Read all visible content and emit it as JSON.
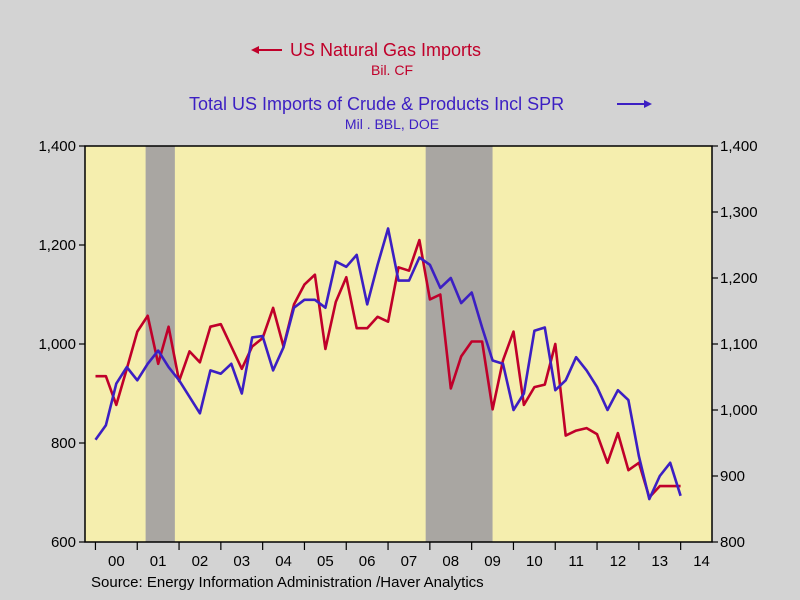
{
  "chart_data": {
    "type": "line",
    "title": "US Natural Gas Imports",
    "title_units": "Bil. CF",
    "subtitle": "Total US Imports of Crude & Products Incl SPR",
    "subtitle_units": "Mil . BBL, DOE",
    "source": "Source:  Energy Information Administration /Haver Analytics",
    "x_axis": {
      "range": [
        1999.75,
        2014.75
      ],
      "tick_labels": [
        "00",
        "01",
        "02",
        "03",
        "04",
        "05",
        "06",
        "07",
        "08",
        "09",
        "10",
        "11",
        "12",
        "13",
        "14"
      ],
      "tick_label_years": [
        2000.5,
        2001.5,
        2002.5,
        2003.5,
        2004.5,
        2005.5,
        2006.5,
        2007.5,
        2008.5,
        2009.5,
        2010.5,
        2011.5,
        2012.5,
        2013.5,
        2014.5
      ]
    },
    "y_left": {
      "range": [
        600,
        1400
      ],
      "ticks": [
        600,
        800,
        1000,
        1200,
        1400
      ],
      "tick_labels": [
        "600",
        "800",
        "1,000",
        "1,200",
        "1,400"
      ]
    },
    "y_right": {
      "range": [
        800,
        1400
      ],
      "ticks": [
        800,
        900,
        1000,
        1100,
        1200,
        1300,
        1400
      ],
      "tick_labels": [
        "800",
        "900",
        "1,000",
        "1,100",
        "1,200",
        "1,300",
        "1,400"
      ]
    },
    "recessions": [
      {
        "start": 2001.2,
        "end": 2001.9
      },
      {
        "start": 2007.9,
        "end": 2009.5
      }
    ],
    "colors": {
      "plot_bg": "#f5eeae",
      "recession": "#a9a6a2",
      "gas": "#c0002a",
      "oil": "#3c1fc3",
      "text": "#000000"
    },
    "series": [
      {
        "name": "US Natural Gas Imports",
        "axis": "left",
        "color": "#c0002a",
        "start_year": 2000.0,
        "step": 0.25,
        "values": [
          935,
          935,
          877,
          950,
          1025,
          1057,
          960,
          1035,
          925,
          985,
          963,
          1035,
          1040,
          995,
          950,
          995,
          1012,
          1073,
          995,
          1080,
          1120,
          1140,
          990,
          1085,
          1135,
          1032,
          1032,
          1055,
          1045,
          1155,
          1148,
          1210,
          1090,
          1100,
          910,
          975,
          1005,
          1005,
          868,
          967,
          1025,
          877,
          913,
          918,
          1000,
          815,
          825,
          830,
          818,
          760,
          820,
          745,
          760,
          690,
          713,
          713,
          713
        ]
      },
      {
        "name": "Total US Imports of Crude & Products Incl SPR",
        "axis": "right",
        "color": "#3c1fc3",
        "start_year": 2000.0,
        "step": 0.25,
        "values": [
          955,
          977,
          1040,
          1065,
          1045,
          1070,
          1090,
          1065,
          1045,
          1020,
          995,
          1060,
          1055,
          1070,
          1025,
          1110,
          1112,
          1060,
          1095,
          1155,
          1167,
          1167,
          1155,
          1225,
          1217,
          1235,
          1160,
          1220,
          1275,
          1196,
          1196,
          1231,
          1220,
          1185,
          1200,
          1162,
          1178,
          1125,
          1075,
          1070,
          1000,
          1025,
          1120,
          1125,
          1030,
          1045,
          1080,
          1060,
          1035,
          1000,
          1030,
          1015,
          930,
          865,
          900,
          920,
          870
        ]
      }
    ]
  }
}
